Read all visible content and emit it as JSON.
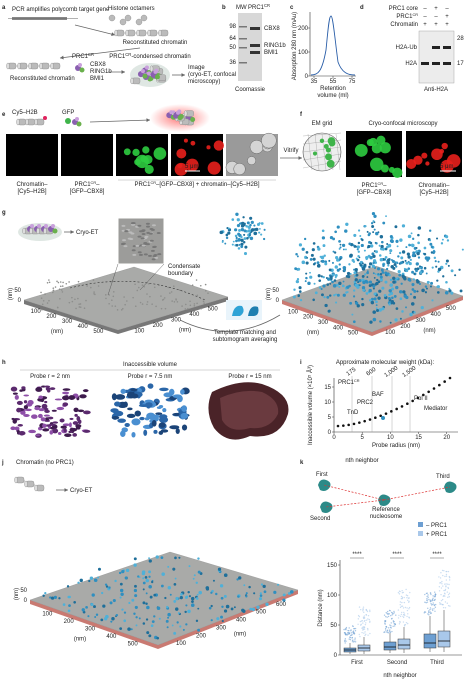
{
  "a": {
    "label": "a",
    "pcr": "PCR amplifies polycomb target gene",
    "octamers": "Histone octamers",
    "recon_top": "Reconstituted chromatin",
    "recon_bottom": "Reconstituted chromatin",
    "prc1": "PRC1",
    "prc1_sup": "CR",
    "cbx8": "CBX8",
    "ring1b": "RING1b",
    "bmi1": "BMI1",
    "cond": "PRC1",
    "cond_sup": "CR",
    "cond_post": "-condensed chromatin",
    "image": [
      "Image",
      "(cryo-ET, confocal",
      "microscopy)"
    ]
  },
  "b": {
    "label": "b",
    "mw": "MW",
    "prc1": "PRC1",
    "prc1_sup": "CR",
    "markers": [
      "98",
      "64",
      "50",
      "36"
    ],
    "bands": [
      "CBX8",
      "RING1b",
      "BMI1"
    ],
    "stain": "Coomassie"
  },
  "c": {
    "label": "c",
    "ylabel": "Absorption 280 nm (mAu)",
    "yticks": [
      "0",
      "100",
      "200"
    ],
    "xticks": [
      "35",
      "55",
      "75"
    ],
    "xlabel": [
      "Retention",
      "volume (ml)"
    ]
  },
  "d": {
    "label": "d",
    "core": "PRC1 core",
    "cr": "PRC1",
    "cr_sup": "CR",
    "chromatin": "Chromatin",
    "signs": [
      [
        "–",
        "+",
        "–"
      ],
      [
        "–",
        "–",
        "+"
      ],
      [
        "+",
        "+",
        "+"
      ]
    ],
    "markers": [
      "28",
      "17"
    ],
    "bands": [
      "H2A-Ub",
      "H2A"
    ],
    "antibody": "Anti-H2A"
  },
  "e": {
    "label": "e",
    "cy5": "Cy5–H2B",
    "gfp": "GFP",
    "scale": "5 μm",
    "cap1": [
      "Chromatin–",
      "[Cy5–H2B]"
    ],
    "cap2_a": "PRC1",
    "cap2_sup": "CR",
    "cap2_b": "–",
    "cap2_line2": "[GFP–CBX8]",
    "cap3_a": "PRC1",
    "cap3_sup": "CR",
    "cap3_b": "–[GFP–CBX8] + chromatin–[Cy5–H2B]",
    "vitrify": "Vitrify"
  },
  "f": {
    "label": "f",
    "grid": "EM grid",
    "title": "Cryo-confocal microscopy",
    "scale": "5 μm",
    "cap1_a": "PRC1",
    "cap1_sup": "CR",
    "cap1_b": "–",
    "cap1_line2": "[GFP–CBX8]",
    "cap2": [
      "Chromatin–",
      "[Cy5–H2B]"
    ]
  },
  "g": {
    "label": "g",
    "cryo": "Cryo-ET",
    "boundary": [
      "Condensate",
      "boundary"
    ],
    "template": [
      "Template matching and",
      "subtomogram averaging"
    ],
    "left": {
      "zticks": [
        "0",
        "50"
      ],
      "yticks": [
        "100",
        "200",
        "300",
        "400",
        "500"
      ],
      "xticks": [
        "100",
        "200",
        "300",
        "400",
        "500"
      ],
      "zunit": "(nm)",
      "yunit": "(nm)",
      "xunit": "(nm)"
    },
    "right": {
      "zticks": [
        "0",
        "50"
      ],
      "yticks": [
        "100",
        "200",
        "300",
        "400",
        "500"
      ],
      "xticks": [
        "100",
        "200",
        "300",
        "400",
        "500"
      ],
      "zunit": "(nm)",
      "yunit": "(nm)",
      "xunit": "(nm)"
    }
  },
  "h": {
    "label": "h",
    "title": "Inaccessible volume",
    "probes": [
      "Probe r = 2 nm",
      "Probe r = 7.5 nm",
      "Probe r = 15 nm"
    ]
  },
  "i": {
    "label": "i",
    "mw_title": "Approximate molecular weight (kDa):",
    "mw_ticks": [
      "175",
      "600",
      "1,000",
      "1,500"
    ],
    "ylabel": "Inaccessible volume (×10⁵ Å³)",
    "yticks": [
      "0",
      "5",
      "10",
      "15"
    ],
    "xticks": [
      "0",
      "5",
      "10",
      "15",
      "20"
    ],
    "xlabel": "Probe radius (nm)",
    "complexes": [
      "TnD",
      "PRC2",
      "BAF",
      "Pol II",
      "Mediator"
    ],
    "prc1": "PRC1",
    "prc1_sup": "CR"
  },
  "j": {
    "label": "j",
    "title": "Chromatin (no PRC1)",
    "cryo": "Cryo-ET",
    "zticks": [
      "0",
      "50"
    ],
    "yticks": [
      "100",
      "200",
      "300",
      "400",
      "500"
    ],
    "xticks": [
      "100",
      "200",
      "300",
      "400",
      "500",
      "600"
    ],
    "zunit": "(nm)",
    "yunit": "(nm)",
    "xunit": "(nm)"
  },
  "k": {
    "label": "k",
    "nth": "nth neighbor",
    "first": "First",
    "second": "Second",
    "third": "Third",
    "reference": [
      "Reference",
      "nucleosome"
    ],
    "legend": [
      "– PRC1",
      "+ PRC1"
    ],
    "ylabel": "Distance (nm)",
    "yticks": [
      "0",
      "50",
      "100",
      "150"
    ],
    "sig": [
      "****",
      "****",
      "****"
    ],
    "categories": [
      "First",
      "Second",
      "Third"
    ],
    "xlabel": "nth neighbor"
  }
}
